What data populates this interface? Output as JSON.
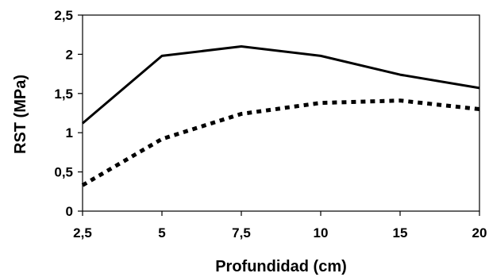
{
  "chart_data": {
    "type": "line",
    "title": "",
    "xlabel": "Profundidad (cm)",
    "ylabel": "RST (MPa)",
    "categories": [
      "2,5",
      "5",
      "7,5",
      "10",
      "15",
      "20"
    ],
    "y_ticks": [
      "0",
      "0,5",
      "1",
      "1,5",
      "2",
      "2,5"
    ],
    "ylim": [
      0,
      2.5
    ],
    "grid": false,
    "legend": "none",
    "series": [
      {
        "style": "solid",
        "color": "#000000",
        "values": [
          1.12,
          1.98,
          2.1,
          1.98,
          1.74,
          1.57
        ]
      },
      {
        "style": "dashed",
        "color": "#000000",
        "values": [
          0.33,
          0.92,
          1.24,
          1.38,
          1.41,
          1.3
        ]
      }
    ]
  }
}
